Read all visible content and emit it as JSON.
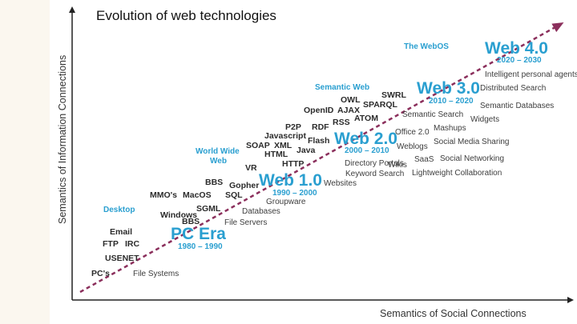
{
  "title": "Evolution of web technologies",
  "axes": {
    "x_label": "Semantics of Social Connections",
    "y_label": "Semantics of Information Connections"
  },
  "colors": {
    "accent_blue": "#2a9fd0",
    "arrow": "#8b2f5c",
    "text_dark": "#2b2b2b",
    "text_gray": "#3d3d3d"
  },
  "eras": [
    {
      "name": "PC Era",
      "years": "1980 – 1990"
    },
    {
      "name": "Web 1.0",
      "years": "1990 – 2000"
    },
    {
      "name": "Web 2.0",
      "years": "2000 – 2010"
    },
    {
      "name": "Web 3.0",
      "years": "2010 – 2020"
    },
    {
      "name": "Web 4.0",
      "years": "2020 – 2030"
    }
  ],
  "category_labels": {
    "desktop": "Desktop",
    "www_line1": "World Wide",
    "www_line2": "Web",
    "semantic_web": "Semantic Web",
    "web_os": "The WebOS"
  },
  "technologies": {
    "pcs": "PC's",
    "usenet": "USENET",
    "ftp": "FTP",
    "irc": "IRC",
    "email": "Email",
    "windows": "Windows",
    "bbs_small": "BBS",
    "sgml": "SGML",
    "mmos": "MMO's",
    "macos": "MacOS",
    "sql": "SQL",
    "bbs": "BBS",
    "gopher": "Gopher",
    "vr": "VR",
    "http": "HTTP",
    "html": "HTML",
    "java": "Java",
    "soap": "SOAP",
    "xml": "XML",
    "javascript": "Javascript",
    "flash": "Flash",
    "p2p": "P2P",
    "rdf": "RDF",
    "rss": "RSS",
    "atom": "ATOM",
    "openid": "OpenID",
    "ajax": "AJAX",
    "sparql": "SPARQL",
    "owl": "OWL",
    "swrl": "SWRL"
  },
  "applications": {
    "file_systems": "File Systems",
    "file_servers": "File Servers",
    "databases": "Databases",
    "groupware": "Groupware",
    "websites": "Websites",
    "keyword_search": "Keyword Search",
    "directory_portals": "Directory Portals",
    "wikis": "Wikis",
    "lightweight_collab": "Lightweight Collaboration",
    "saas": "SaaS",
    "social_networking": "Social Networking",
    "weblogs": "Weblogs",
    "social_media_sharing": "Social Media Sharing",
    "office20": "Office 2.0",
    "mashups": "Mashups",
    "semantic_search": "Semantic Search",
    "widgets": "Widgets",
    "semantic_databases": "Semantic Databases",
    "distributed_search": "Distributed Search",
    "intelligent_agents": "Intelligent personal agents"
  }
}
